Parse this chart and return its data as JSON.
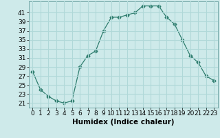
{
  "x": [
    0,
    1,
    2,
    3,
    4,
    5,
    6,
    7,
    8,
    9,
    10,
    11,
    12,
    13,
    14,
    15,
    16,
    17,
    18,
    19,
    20,
    21,
    22,
    23
  ],
  "y": [
    28,
    24,
    22.5,
    21.5,
    21,
    21.5,
    29,
    31.5,
    32.5,
    37,
    40,
    40,
    40.5,
    41,
    42.5,
    42.5,
    42.5,
    40,
    38.5,
    35,
    31.5,
    30,
    27,
    26
  ],
  "line_color": "#2e7d6e",
  "marker": "D",
  "marker_size": 2.5,
  "bg_color": "#ceeaea",
  "grid_color": "#b0d8d8",
  "xlabel": "Humidex (Indice chaleur)",
  "xlabel_fontsize": 7.5,
  "ytick_labels": [
    "21",
    "23",
    "25",
    "27",
    "29",
    "31",
    "33",
    "35",
    "37",
    "39",
    "41"
  ],
  "ytick_values": [
    21,
    23,
    25,
    27,
    29,
    31,
    33,
    35,
    37,
    39,
    41
  ],
  "ylim": [
    20.0,
    43.5
  ],
  "xlim": [
    -0.5,
    23.5
  ],
  "tick_fontsize": 6.5
}
